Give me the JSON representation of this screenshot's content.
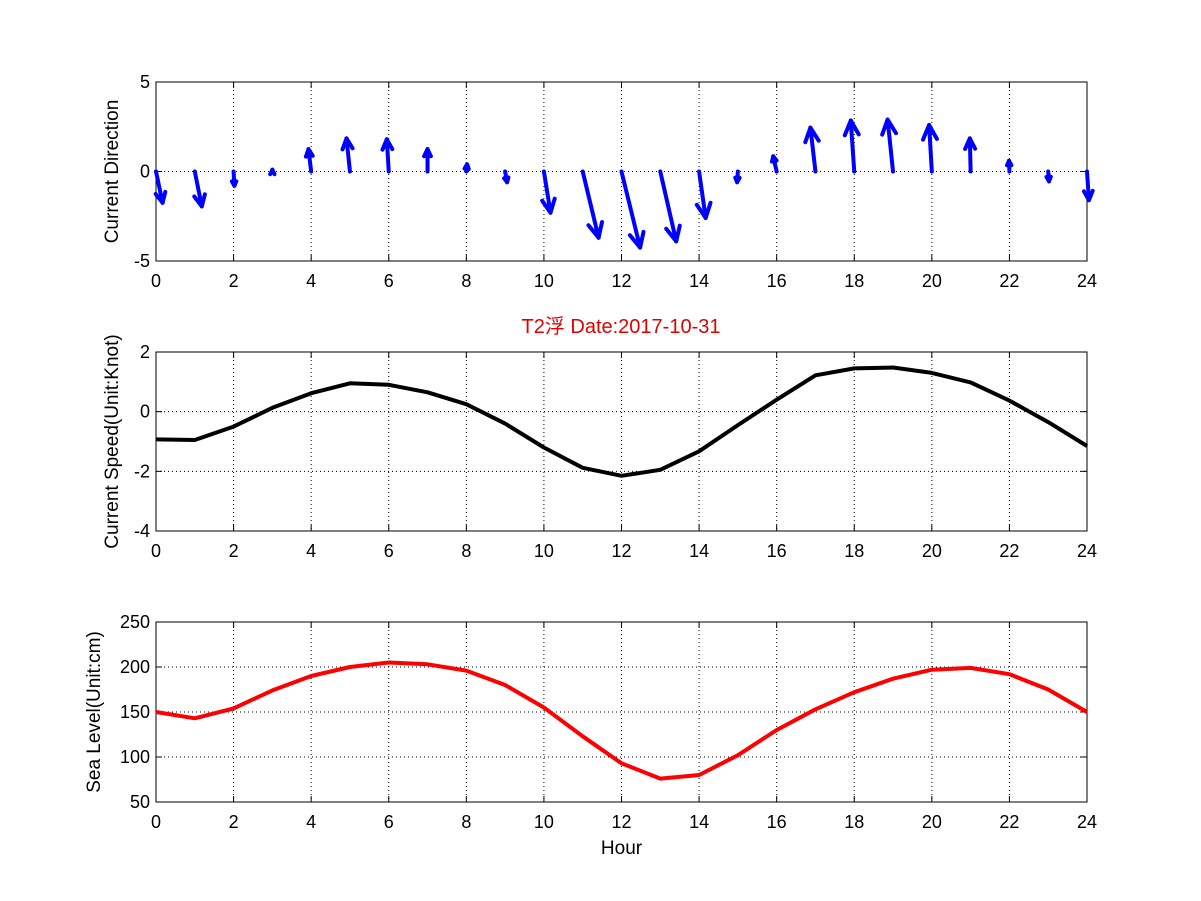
{
  "figure": {
    "title": "T2浮    Date:2017-10-31",
    "title_color": "#e00000"
  },
  "chart_data": [
    {
      "type": "quiver",
      "ylabel": "Current Direction",
      "xlabel": "",
      "xlim": [
        0,
        24
      ],
      "ylim": [
        -5,
        5
      ],
      "xticks": [
        0,
        2,
        4,
        6,
        8,
        10,
        12,
        14,
        16,
        18,
        20,
        22,
        24
      ],
      "yticks": [
        -5,
        0,
        5
      ],
      "grid": true,
      "color": "#0000ff",
      "vectors": [
        {
          "x": 0,
          "u": 0.17,
          "v": -1.75
        },
        {
          "x": 1,
          "u": 0.18,
          "v": -1.95
        },
        {
          "x": 2,
          "u": 0.02,
          "v": -0.8
        },
        {
          "x": 3,
          "u": 0.0,
          "v": 0.1
        },
        {
          "x": 4,
          "u": -0.07,
          "v": 1.25
        },
        {
          "x": 5,
          "u": -0.09,
          "v": 1.85
        },
        {
          "x": 6,
          "u": -0.05,
          "v": 1.8
        },
        {
          "x": 7,
          "u": 0.0,
          "v": 1.25
        },
        {
          "x": 8,
          "u": 0.02,
          "v": 0.4
        },
        {
          "x": 9,
          "u": 0.05,
          "v": -0.6
        },
        {
          "x": 10,
          "u": 0.17,
          "v": -2.3
        },
        {
          "x": 11,
          "u": 0.41,
          "v": -3.7
        },
        {
          "x": 12,
          "u": 0.48,
          "v": -4.25
        },
        {
          "x": 13,
          "u": 0.41,
          "v": -3.9
        },
        {
          "x": 14,
          "u": 0.17,
          "v": -2.6
        },
        {
          "x": 15,
          "u": -0.02,
          "v": -0.6
        },
        {
          "x": 16,
          "u": -0.09,
          "v": 0.85
        },
        {
          "x": 17,
          "u": -0.13,
          "v": 2.45
        },
        {
          "x": 18,
          "u": -0.09,
          "v": 2.85
        },
        {
          "x": 19,
          "u": -0.14,
          "v": 2.9
        },
        {
          "x": 20,
          "u": -0.07,
          "v": 2.6
        },
        {
          "x": 21,
          "u": -0.02,
          "v": 1.85
        },
        {
          "x": 22,
          "u": -0.01,
          "v": 0.6
        },
        {
          "x": 23,
          "u": 0.02,
          "v": -0.55
        },
        {
          "x": 24,
          "u": 0.05,
          "v": -1.6
        }
      ]
    },
    {
      "type": "line",
      "ylabel": "Current Speed(Unit:Knot)",
      "xlabel": "",
      "xlim": [
        0,
        24
      ],
      "ylim": [
        -4,
        2
      ],
      "xticks": [
        0,
        2,
        4,
        6,
        8,
        10,
        12,
        14,
        16,
        18,
        20,
        22,
        24
      ],
      "yticks": [
        -4,
        -2,
        0,
        2
      ],
      "grid": true,
      "color": "#000000",
      "x": [
        0,
        1,
        2,
        3,
        4,
        5,
        6,
        7,
        8,
        9,
        10,
        11,
        12,
        13,
        14,
        15,
        16,
        17,
        18,
        19,
        20,
        21,
        22,
        23,
        24
      ],
      "y": [
        -0.93,
        -0.95,
        -0.5,
        0.13,
        0.62,
        0.95,
        0.9,
        0.65,
        0.25,
        -0.4,
        -1.2,
        -1.88,
        -2.15,
        -1.95,
        -1.33,
        -0.45,
        0.4,
        1.22,
        1.45,
        1.48,
        1.3,
        0.98,
        0.37,
        -0.35,
        -1.15
      ]
    },
    {
      "type": "line",
      "ylabel": "Sea Level(Unit:cm)",
      "xlabel": "Hour",
      "xlim": [
        0,
        24
      ],
      "ylim": [
        50,
        250
      ],
      "xticks": [
        0,
        2,
        4,
        6,
        8,
        10,
        12,
        14,
        16,
        18,
        20,
        22,
        24
      ],
      "yticks": [
        50,
        100,
        150,
        200,
        250
      ],
      "grid": true,
      "color": "#ff0000",
      "x": [
        0,
        1,
        2,
        3,
        4,
        5,
        6,
        7,
        8,
        9,
        10,
        11,
        12,
        13,
        14,
        15,
        16,
        17,
        18,
        19,
        20,
        21,
        22,
        23,
        24
      ],
      "y": [
        150,
        143,
        154,
        174,
        190,
        200,
        205,
        203,
        196,
        180,
        155,
        123,
        93,
        76,
        80,
        102,
        130,
        153,
        172,
        187,
        197,
        199,
        192,
        175,
        150
      ]
    }
  ]
}
